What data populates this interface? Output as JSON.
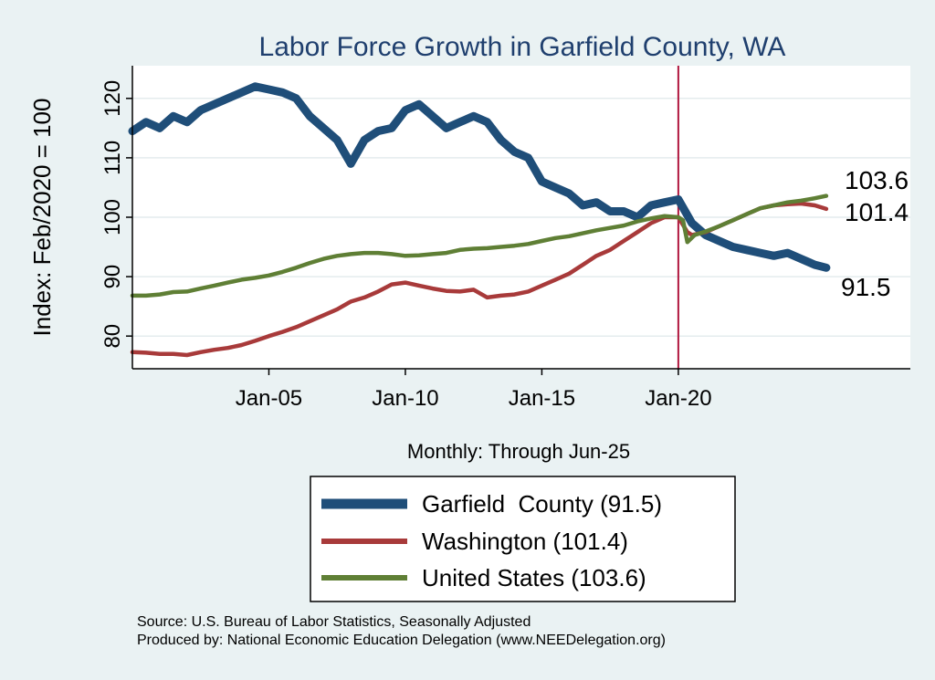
{
  "chart_data": {
    "type": "line",
    "title": "Labor Force Growth in Garfield  County, WA",
    "xlabel": "Monthly: Through Jun-25",
    "ylabel": "Index: Feb/2020 = 100",
    "xlim": [
      2000.0,
      2028.5
    ],
    "ylim": [
      74.5,
      125.5
    ],
    "yticks": [
      80,
      90,
      100,
      110,
      120
    ],
    "xticks": [
      {
        "label": "Jan-05",
        "value": 2005.0
      },
      {
        "label": "Jan-10",
        "value": 2010.0
      },
      {
        "label": "Jan-15",
        "value": 2015.0
      },
      {
        "label": "Jan-20",
        "value": 2020.0
      }
    ],
    "vline": {
      "x": 2020.0,
      "color": "#b0173f"
    },
    "end_labels": [
      "103.6",
      "101.4",
      "91.5"
    ],
    "series": [
      {
        "name": "Garfield  County (91.5)",
        "color": "#1f4e79",
        "x": [
          2000.0,
          2000.5,
          2001.0,
          2001.5,
          2002.0,
          2002.5,
          2003.0,
          2003.5,
          2004.0,
          2004.5,
          2005.0,
          2005.5,
          2006.0,
          2006.5,
          2007.0,
          2007.5,
          2008.0,
          2008.5,
          2009.0,
          2009.5,
          2010.0,
          2010.5,
          2011.0,
          2011.5,
          2012.0,
          2012.5,
          2013.0,
          2013.5,
          2014.0,
          2014.5,
          2015.0,
          2015.5,
          2016.0,
          2016.5,
          2017.0,
          2017.5,
          2018.0,
          2018.5,
          2019.0,
          2019.5,
          2020.0,
          2020.5,
          2021.0,
          2021.5,
          2022.0,
          2022.5,
          2023.0,
          2023.5,
          2024.0,
          2024.5,
          2025.0,
          2025.42
        ],
        "values": [
          114.5,
          116,
          115,
          117,
          116,
          118,
          119,
          120,
          121,
          122,
          121.5,
          121,
          120,
          117,
          115,
          113,
          109,
          113,
          114.5,
          115,
          118,
          119,
          117,
          115,
          116,
          117,
          116,
          113,
          111,
          110,
          106,
          105,
          104,
          102,
          102.5,
          101,
          101,
          100,
          102,
          102.5,
          103,
          99,
          97,
          96,
          95,
          94.5,
          94,
          93.5,
          94,
          93,
          92,
          91.5
        ]
      },
      {
        "name": "Washington (101.4)",
        "color": "#a83a3a",
        "x": [
          2000.0,
          2000.5,
          2001.0,
          2001.5,
          2002.0,
          2002.5,
          2003.0,
          2003.5,
          2004.0,
          2004.5,
          2005.0,
          2005.5,
          2006.0,
          2006.5,
          2007.0,
          2007.5,
          2008.0,
          2008.5,
          2009.0,
          2009.5,
          2010.0,
          2010.5,
          2011.0,
          2011.5,
          2012.0,
          2012.5,
          2013.0,
          2013.5,
          2014.0,
          2014.5,
          2015.0,
          2015.5,
          2016.0,
          2016.5,
          2017.0,
          2017.5,
          2018.0,
          2018.5,
          2019.0,
          2019.5,
          2020.0,
          2020.33,
          2020.5,
          2021.0,
          2021.5,
          2022.0,
          2022.5,
          2023.0,
          2023.5,
          2024.0,
          2024.5,
          2025.0,
          2025.42
        ],
        "values": [
          77.3,
          77.2,
          77.0,
          77.0,
          76.8,
          77.3,
          77.7,
          78.0,
          78.5,
          79.2,
          80.0,
          80.7,
          81.5,
          82.5,
          83.5,
          84.5,
          85.8,
          86.5,
          87.5,
          88.7,
          89.0,
          88.5,
          88.0,
          87.6,
          87.5,
          87.8,
          86.5,
          86.8,
          87.0,
          87.5,
          88.5,
          89.5,
          90.5,
          92.0,
          93.5,
          94.5,
          96.0,
          97.5,
          99.0,
          100.0,
          100.0,
          97.5,
          97.0,
          97.5,
          98.5,
          99.5,
          100.5,
          101.5,
          102.0,
          102.2,
          102.3,
          102.0,
          101.4
        ]
      },
      {
        "name": "United States (103.6)",
        "color": "#5f7f35",
        "x": [
          2000.0,
          2000.5,
          2001.0,
          2001.5,
          2002.0,
          2002.5,
          2003.0,
          2003.5,
          2004.0,
          2004.5,
          2005.0,
          2005.5,
          2006.0,
          2006.5,
          2007.0,
          2007.5,
          2008.0,
          2008.5,
          2009.0,
          2009.5,
          2010.0,
          2010.5,
          2011.0,
          2011.5,
          2012.0,
          2012.5,
          2013.0,
          2013.5,
          2014.0,
          2014.5,
          2015.0,
          2015.5,
          2016.0,
          2016.5,
          2017.0,
          2017.5,
          2018.0,
          2018.5,
          2019.0,
          2019.5,
          2020.0,
          2020.17,
          2020.33,
          2020.6,
          2021.0,
          2021.5,
          2022.0,
          2022.5,
          2023.0,
          2023.5,
          2024.0,
          2024.5,
          2025.0,
          2025.42
        ],
        "values": [
          86.8,
          86.8,
          87.0,
          87.4,
          87.5,
          88.0,
          88.5,
          89.0,
          89.5,
          89.8,
          90.2,
          90.8,
          91.5,
          92.3,
          93.0,
          93.5,
          93.8,
          94.0,
          94.0,
          93.8,
          93.5,
          93.6,
          93.8,
          94.0,
          94.5,
          94.7,
          94.8,
          95.0,
          95.2,
          95.5,
          96.0,
          96.5,
          96.8,
          97.3,
          97.8,
          98.2,
          98.6,
          99.3,
          99.8,
          100.2,
          100.0,
          99.5,
          95.8,
          97.0,
          97.6,
          98.5,
          99.5,
          100.5,
          101.5,
          102.0,
          102.5,
          102.8,
          103.2,
          103.6
        ]
      }
    ]
  },
  "source": {
    "line1": "Source: U.S. Bureau of Labor Statistics, Seasonally Adjusted",
    "line2": "Produced by: National Economic Education Delegation (www.NEEDelegation.org)"
  }
}
